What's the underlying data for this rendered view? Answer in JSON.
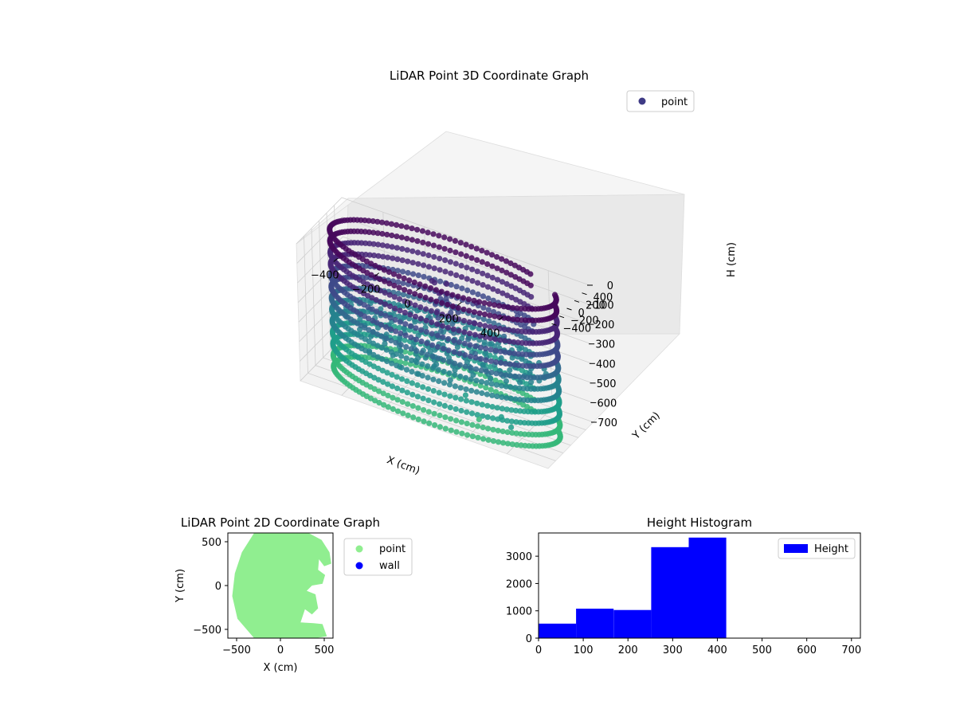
{
  "figure": {
    "background": "#ffffff"
  },
  "chart_data": [
    {
      "type": "scatter",
      "projection": "3d",
      "title": "LiDAR Point 3D Coordinate Graph",
      "xlabel": "X (cm)",
      "ylabel": "Y (cm)",
      "zlabel": "H (cm)",
      "xlim": [
        -600,
        600
      ],
      "ylim": [
        -600,
        600
      ],
      "zlim": [
        0,
        700
      ],
      "z_inverted": true,
      "xticks": [
        "−400",
        "−200",
        "0",
        "200",
        "400"
      ],
      "yticks": [
        "−400",
        "−200",
        "0",
        "200",
        "400"
      ],
      "zticks": [
        "0",
        "100",
        "200",
        "300",
        "400",
        "500",
        "600",
        "700"
      ],
      "legend": {
        "placement": "upper-right",
        "entries": [
          {
            "label": "point",
            "color": "#3e3a85"
          }
        ]
      },
      "colormap": [
        "#46085c",
        "#482677",
        "#3e4a89",
        "#31688e",
        "#26828e",
        "#1f9e89",
        "#35b779"
      ],
      "wall": {
        "shape": "ring",
        "radius": 540,
        "height_range": [
          0,
          700
        ],
        "angles_deg": 130,
        "height_levels": 12
      },
      "floor_level": 400,
      "cluster_points": [
        [
          -60,
          20,
          110
        ],
        [
          -55,
          60,
          125
        ],
        [
          0,
          80,
          115
        ],
        [
          -40,
          90,
          180
        ],
        [
          -30,
          70,
          200
        ],
        [
          -20,
          65,
          210
        ],
        [
          0,
          70,
          205
        ],
        [
          10,
          75,
          215
        ],
        [
          -50,
          40,
          230
        ],
        [
          -40,
          30,
          260
        ],
        [
          -35,
          20,
          290
        ],
        [
          -25,
          10,
          320
        ],
        [
          -20,
          0,
          350
        ],
        [
          -30,
          -10,
          380
        ],
        [
          -25,
          -30,
          410
        ],
        [
          -40,
          -60,
          440
        ],
        [
          -10,
          -80,
          470
        ],
        [
          20,
          60,
          250
        ],
        [
          30,
          40,
          300
        ],
        [
          40,
          20,
          340
        ],
        [
          50,
          -10,
          380
        ],
        [
          60,
          -40,
          420
        ],
        [
          150,
          50,
          150
        ],
        [
          140,
          20,
          250
        ],
        [
          120,
          -40,
          330
        ],
        [
          160,
          -80,
          380
        ],
        [
          200,
          -100,
          420
        ],
        [
          300,
          300,
          210
        ],
        [
          340,
          300,
          230
        ],
        [
          380,
          290,
          220
        ],
        [
          260,
          150,
          300
        ],
        [
          220,
          120,
          320
        ],
        [
          -80,
          -150,
          440
        ],
        [
          -60,
          -200,
          460
        ],
        [
          -100,
          -250,
          480
        ],
        [
          -20,
          -160,
          450
        ],
        [
          0,
          -300,
          460
        ],
        [
          -200,
          -300,
          480
        ],
        [
          -150,
          -400,
          500
        ],
        [
          -50,
          -450,
          490
        ],
        [
          100,
          -420,
          470
        ],
        [
          180,
          -460,
          510
        ],
        [
          350,
          -450,
          560
        ],
        [
          400,
          -470,
          590
        ],
        [
          250,
          -500,
          600
        ],
        [
          -300,
          -380,
          480
        ],
        [
          80,
          -120,
          470
        ],
        [
          30,
          100,
          230
        ],
        [
          -10,
          110,
          200
        ],
        [
          40,
          90,
          220
        ],
        [
          60,
          40,
          230
        ],
        [
          -70,
          0,
          300
        ]
      ]
    },
    {
      "type": "scatter",
      "title": "LiDAR Point 2D Coordinate Graph",
      "xlabel": "X (cm)",
      "ylabel": "Y (cm)",
      "xlim": [
        -600,
        600
      ],
      "ylim": [
        -600,
        600
      ],
      "xticks": [
        -500,
        0,
        500
      ],
      "yticks": [
        -500,
        0,
        500
      ],
      "legend": {
        "placement": "outside-right",
        "entries": [
          {
            "label": "point",
            "color": "#90ee90"
          },
          {
            "label": "wall",
            "color": "#0000ff"
          }
        ]
      },
      "region_outline": [
        [
          -300,
          600
        ],
        [
          320,
          600
        ],
        [
          470,
          520
        ],
        [
          560,
          380
        ],
        [
          580,
          250
        ],
        [
          500,
          220
        ],
        [
          440,
          300
        ],
        [
          430,
          180
        ],
        [
          510,
          120
        ],
        [
          480,
          20
        ],
        [
          360,
          0
        ],
        [
          300,
          -60
        ],
        [
          400,
          -100
        ],
        [
          430,
          -260
        ],
        [
          360,
          -330
        ],
        [
          280,
          -270
        ],
        [
          230,
          -420
        ],
        [
          380,
          -430
        ],
        [
          480,
          -440
        ],
        [
          530,
          -580
        ],
        [
          400,
          -600
        ],
        [
          -300,
          -600
        ],
        [
          -490,
          -380
        ],
        [
          -550,
          -120
        ],
        [
          -520,
          140
        ],
        [
          -440,
          380
        ]
      ]
    },
    {
      "type": "bar",
      "subtype": "histogram",
      "title": "Height Histogram",
      "xlim": [
        0,
        720
      ],
      "ylim": [
        0,
        3850
      ],
      "xticks": [
        0,
        100,
        200,
        300,
        400,
        500,
        600,
        700
      ],
      "yticks": [
        0,
        1000,
        2000,
        3000
      ],
      "bin_edges": [
        0,
        84,
        168,
        252,
        336,
        420,
        504,
        588,
        672,
        700
      ],
      "values": [
        530,
        1080,
        1030,
        3330,
        3680,
        0,
        0,
        0,
        0
      ],
      "legend": {
        "placement": "upper-right",
        "entries": [
          {
            "label": "Height",
            "color": "#0000ff"
          }
        ]
      },
      "color": "#0000ff"
    }
  ]
}
